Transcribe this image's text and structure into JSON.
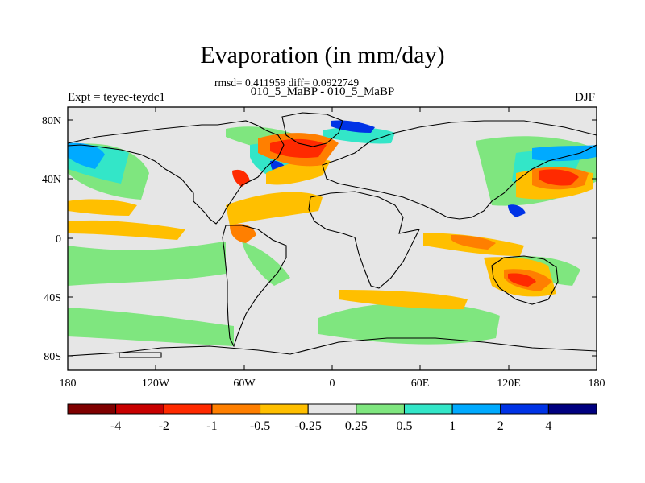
{
  "title": "Evaporation (in mm/day)",
  "stats_text": "rmsd= 0.411959 diff= 0.0922749",
  "subtitle": "010_5_MaBP - 010_5_MaBP",
  "left_label": "Expt = teyec-teydc1",
  "right_label": "DJF",
  "lat_ticks": [
    "80N",
    "40N",
    "0",
    "40S",
    "80S"
  ],
  "lon_ticks": [
    "180",
    "120W",
    "60W",
    "0",
    "60E",
    "120E",
    "180"
  ],
  "colorbar": {
    "colors": [
      "#7f0000",
      "#c80000",
      "#ff2a00",
      "#ff7f00",
      "#ffbf00",
      "#e6e6e6",
      "#7fe67f",
      "#33e6c8",
      "#00aaff",
      "#0033e6",
      "#000080"
    ],
    "labels": [
      "-4",
      "-2",
      "-1",
      "-0.5",
      "-0.25",
      "0.25",
      "0.5",
      "1",
      "2",
      "4"
    ]
  },
  "colors": {
    "land": "#e6e6e6",
    "coast": "#000000"
  }
}
